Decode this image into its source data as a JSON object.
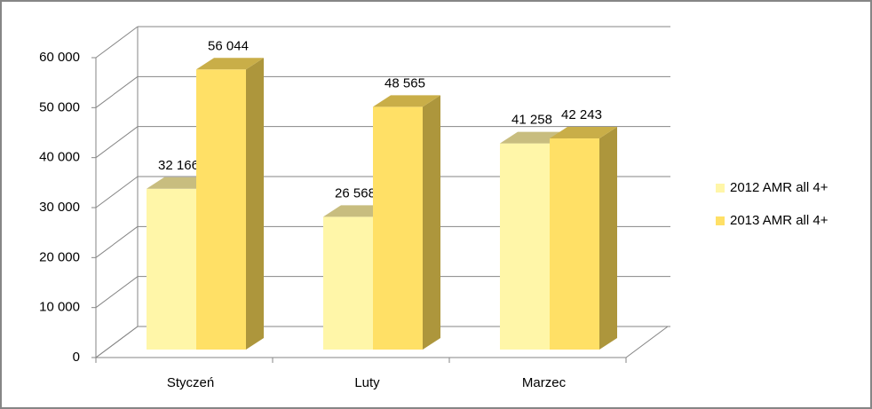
{
  "chart_data": {
    "type": "bar3d",
    "categories": [
      "Styczeń",
      "Luty",
      "Marzec"
    ],
    "series": [
      {
        "name": "2012 AMR all 4+",
        "color": "#fff6a8",
        "values": [
          32166,
          26568,
          41258
        ],
        "value_labels": [
          "32 166",
          "26 568",
          "41 258"
        ]
      },
      {
        "name": "2013 AMR all 4+",
        "color": "#ffe066",
        "values": [
          56044,
          48565,
          42243
        ],
        "value_labels": [
          "56 044",
          "48 565",
          "42 243"
        ]
      }
    ],
    "ylim": [
      0,
      60000
    ],
    "yticks": [
      0,
      {
        "value": 10000,
        "label": "10 000"
      },
      {
        "value": 20000,
        "label": "20 000"
      },
      {
        "value": 30000,
        "label": "30 000"
      },
      {
        "value": 40000,
        "label": "40 000"
      },
      {
        "value": 50000,
        "label": "50 000"
      },
      {
        "value": 60000,
        "label": "60 000"
      }
    ],
    "grid": true,
    "legend": "right"
  }
}
